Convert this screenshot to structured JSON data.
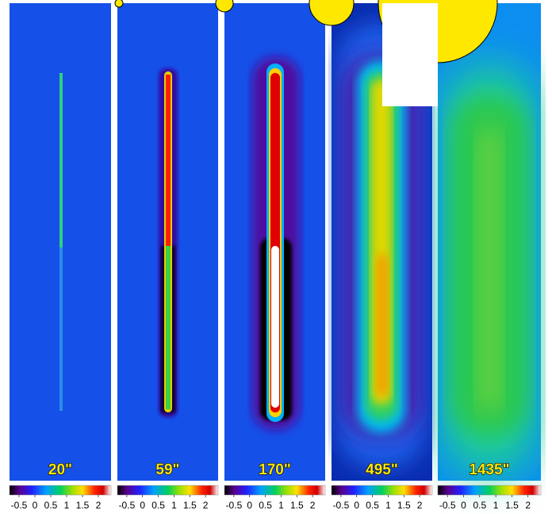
{
  "panels": [
    {
      "label": "20\""
    },
    {
      "label": "59\""
    },
    {
      "label": "170\""
    },
    {
      "label": "495\""
    },
    {
      "label": "1435\""
    }
  ],
  "colorbar": {
    "range": [
      -0.8,
      2.4
    ],
    "ticks": [
      -0.5,
      0,
      0.5,
      1,
      1.5,
      2
    ]
  }
}
